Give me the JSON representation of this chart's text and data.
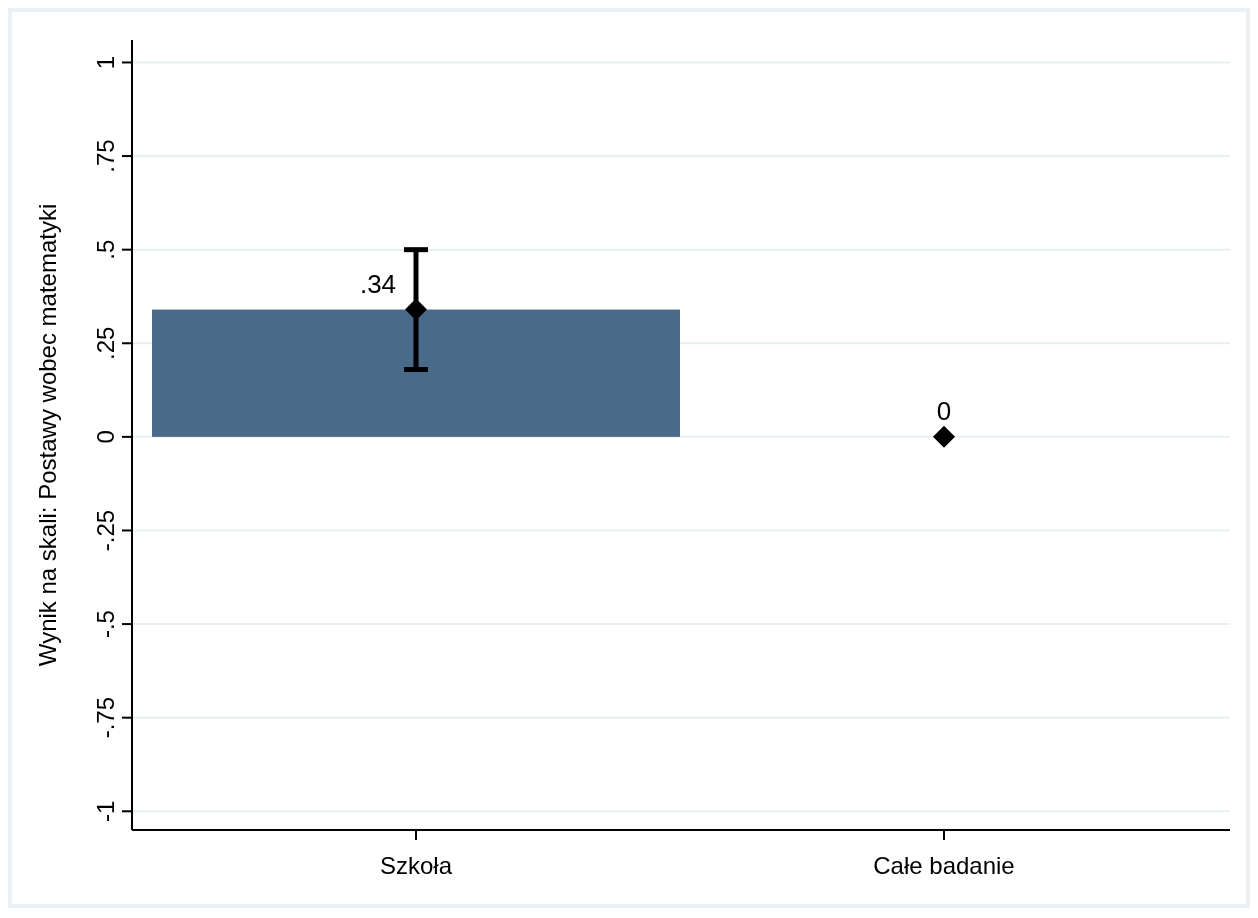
{
  "chart_data": {
    "type": "bar",
    "ylabel": "Wynik na skali: Postawy wobec matematyki",
    "categories": [
      "Szkoła",
      "Całe badanie"
    ],
    "series": [
      {
        "type": "bar",
        "color": "#4a6a89",
        "values": [
          0.34,
          0
        ]
      },
      {
        "type": "scatter",
        "color": "#000000",
        "x": [
          "Szkoła",
          "Całe badanie"
        ],
        "values": [
          0.34,
          0
        ],
        "errors": [
          [
            0.18,
            0.5
          ],
          null
        ],
        "value_labels": [
          ".34",
          "0"
        ]
      }
    ],
    "ylim": [
      -1.05,
      1.06
    ],
    "yticks": [
      {
        "value": -1,
        "label": "-1"
      },
      {
        "value": -0.75,
        "label": "-.75"
      },
      {
        "value": -0.5,
        "label": "-.5"
      },
      {
        "value": -0.25,
        "label": "-.25"
      },
      0,
      {
        "value": 0.25,
        "label": ".25"
      },
      {
        "value": 0.5,
        "label": ".5"
      },
      {
        "value": 0.75,
        "label": ".75"
      },
      1
    ],
    "grid": true,
    "marker": "diamond"
  }
}
